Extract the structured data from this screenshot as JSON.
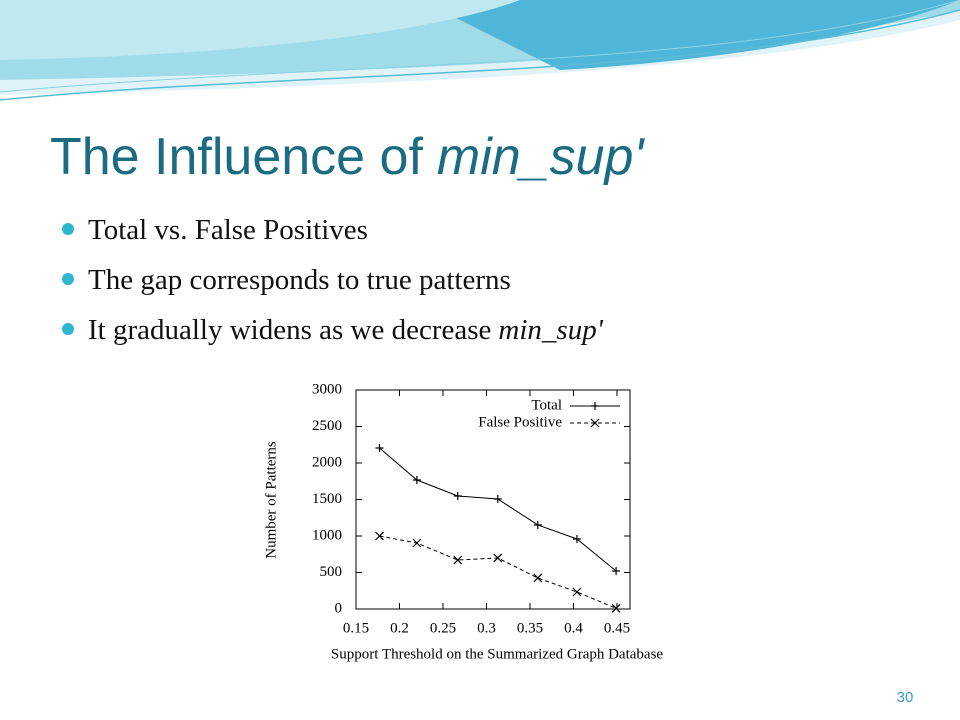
{
  "slide": {
    "title": {
      "text": "The Influence of",
      "emphasis": "min_sup'"
    },
    "bullets": [
      {
        "text": "Total vs. False Positives"
      },
      {
        "text": "The gap corresponds to true patterns"
      },
      {
        "text": "It gradually widens as we decrease",
        "emphasis": "min_sup'"
      }
    ],
    "page_number": "30"
  },
  "chart_data": {
    "type": "line",
    "x_label": "Support Threshold on the Summarized Graph Database",
    "y_label": "Number of Patterns",
    "x": [
      0.177,
      0.22,
      0.267,
      0.313,
      0.359,
      0.404,
      0.449
    ],
    "series": [
      {
        "name": "Total",
        "color": "#000000",
        "line_style": "solid",
        "marker": "plus",
        "values": [
          2205,
          1767,
          1548,
          1507,
          1151,
          959,
          521
        ]
      },
      {
        "name": "False Positive",
        "color": "#000000",
        "line_style": "dashed",
        "marker": "cross",
        "values": [
          1000,
          904,
          671,
          699,
          425,
          233,
          10
        ]
      }
    ],
    "xlim": [
      0.15,
      0.465
    ],
    "ylim": [
      0,
      3000
    ],
    "xticks": [
      0.15,
      0.2,
      0.25,
      0.3,
      0.35,
      0.4,
      0.45
    ],
    "yticks": [
      0,
      500,
      1000,
      1500,
      2000,
      2500,
      3000
    ],
    "grid": false,
    "legend": "top-right"
  }
}
